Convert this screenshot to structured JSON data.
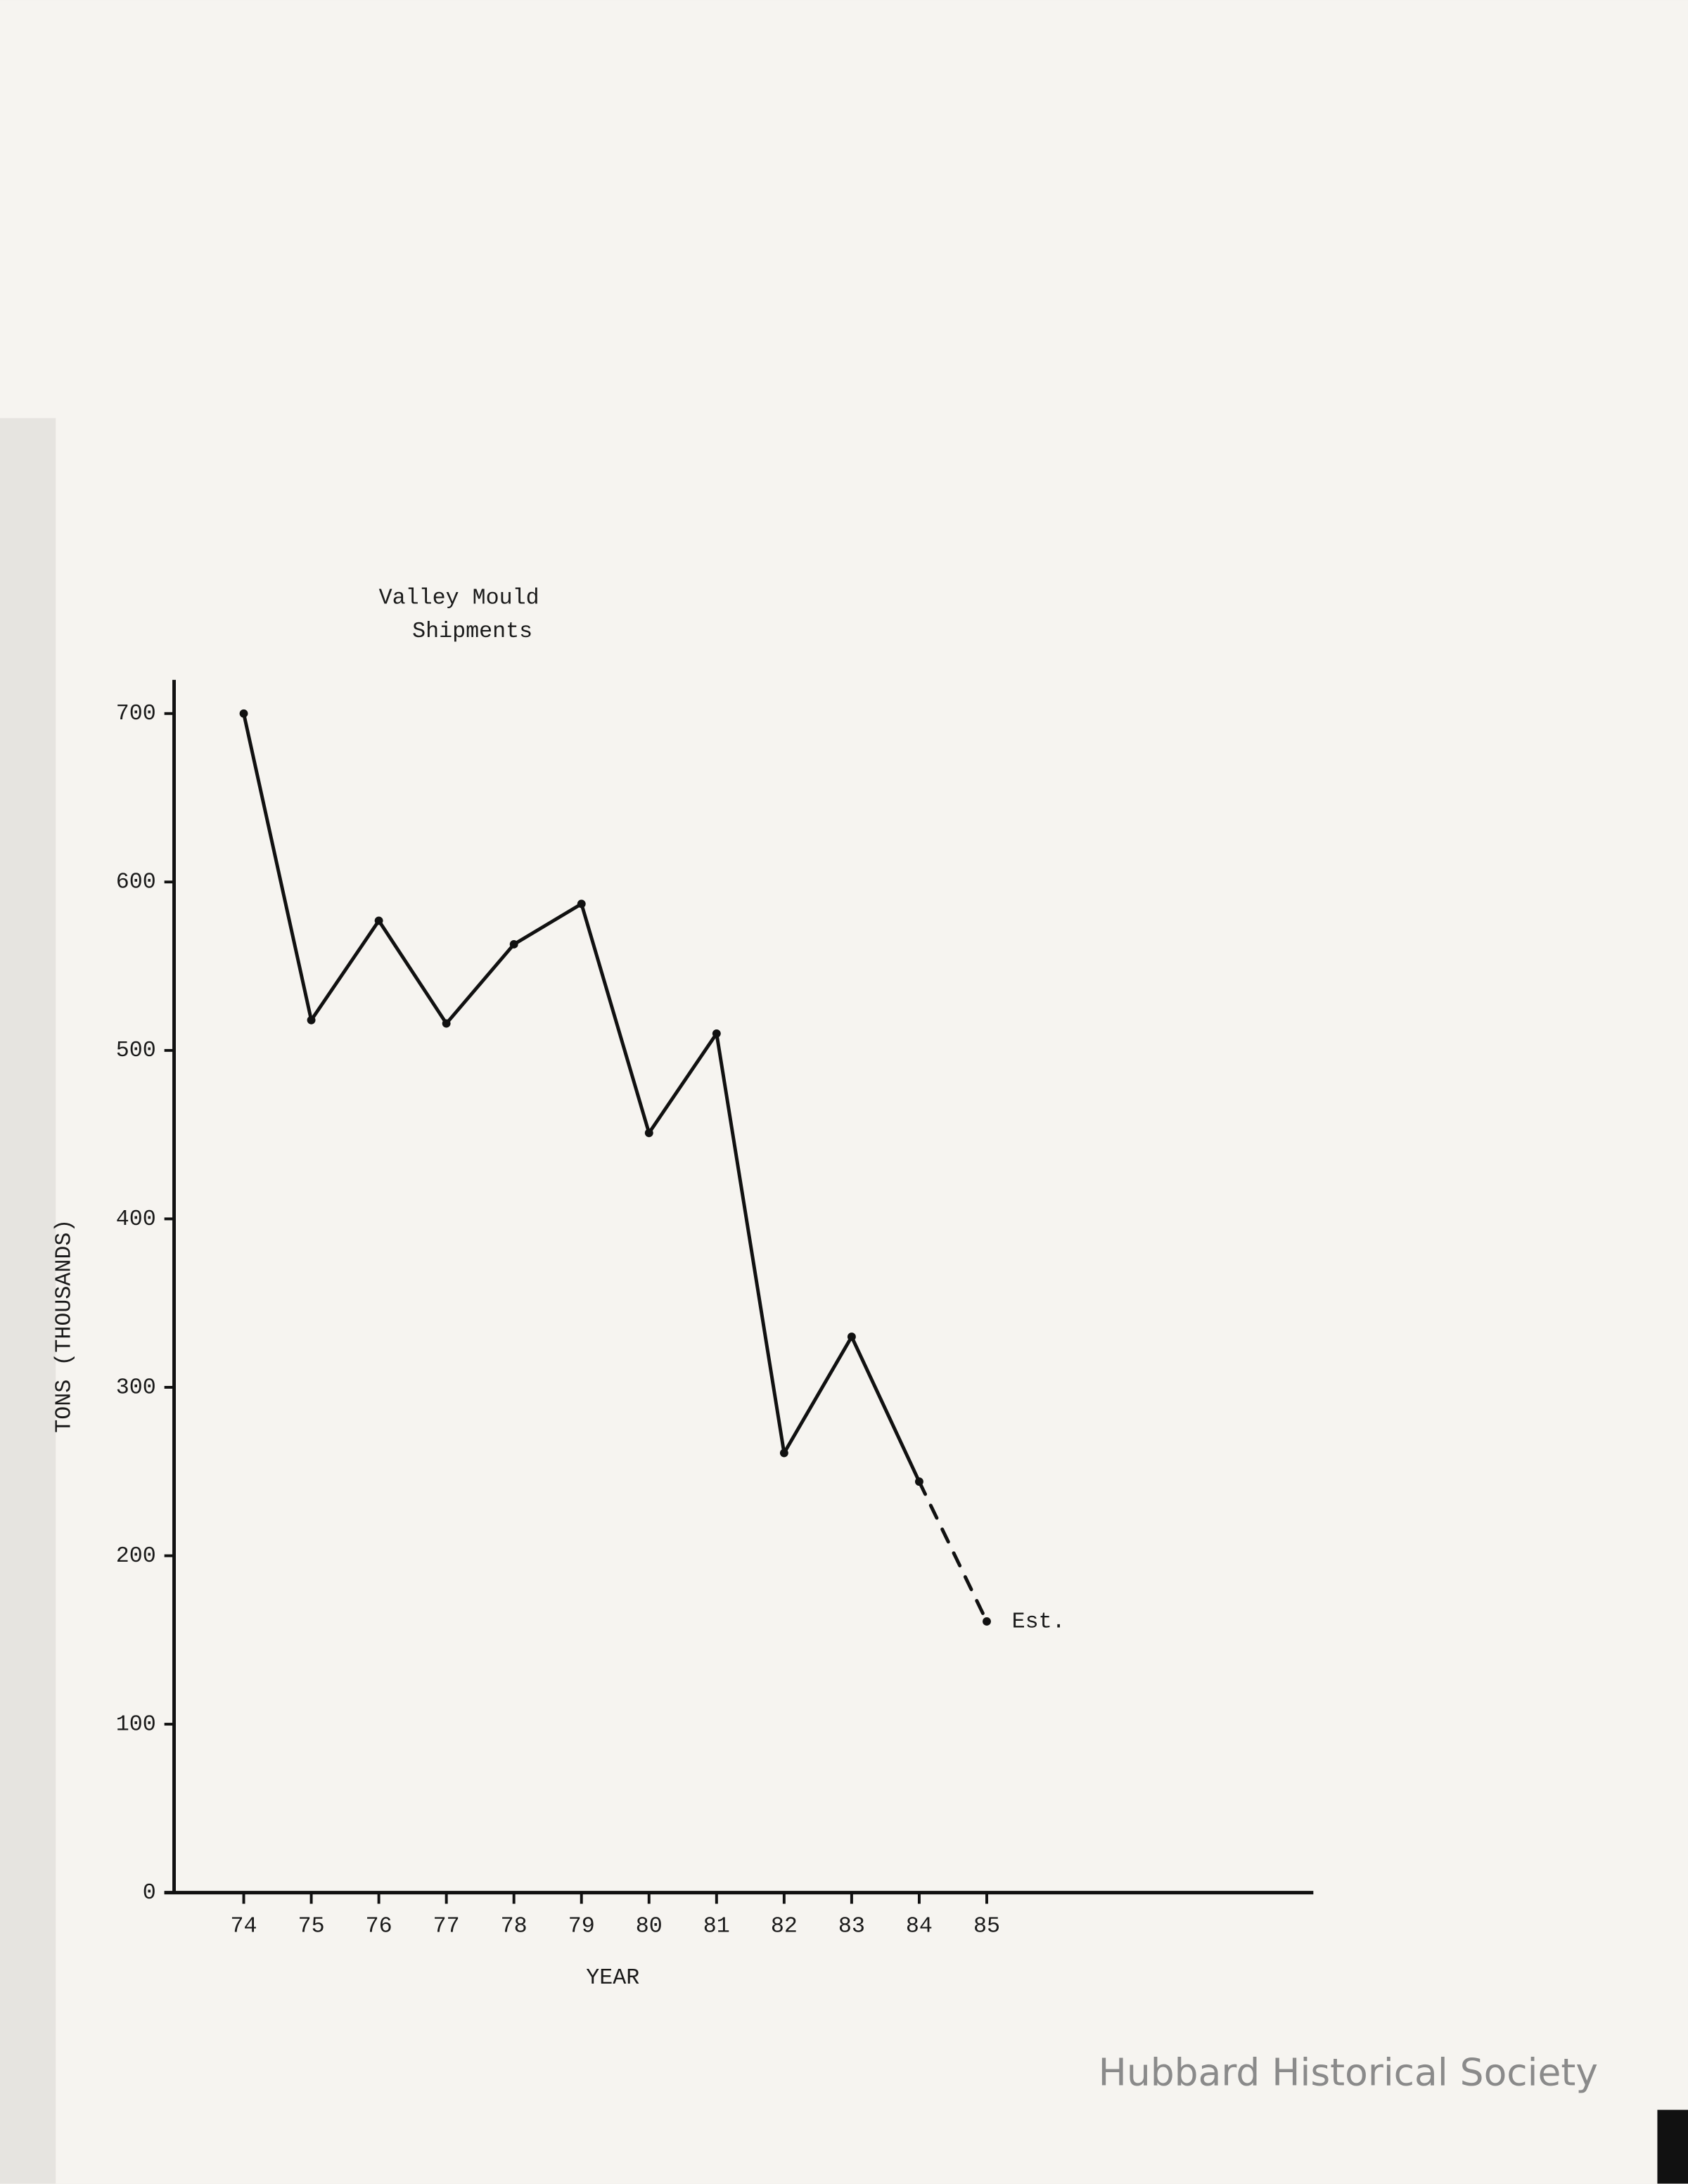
{
  "chart_data": {
    "type": "line",
    "title_lines": [
      "Valley Mould",
      "Shipments"
    ],
    "y_label": "TONS (THOUSANDS)",
    "x_label": "YEAR",
    "categories": [
      "74",
      "75",
      "76",
      "77",
      "78",
      "79",
      "80",
      "81",
      "82",
      "83",
      "84",
      "85"
    ],
    "values": [
      700,
      518,
      577,
      516,
      563,
      587,
      451,
      510,
      261,
      330,
      244,
      161
    ],
    "color": "#111111",
    "ylim": [
      0,
      720
    ],
    "yticks": [
      0,
      100,
      200,
      300,
      400,
      500,
      600,
      700
    ],
    "grid": false,
    "annotation": {
      "text": "Est.",
      "index": 11
    },
    "watermark": "Hubbard Historical Society"
  }
}
